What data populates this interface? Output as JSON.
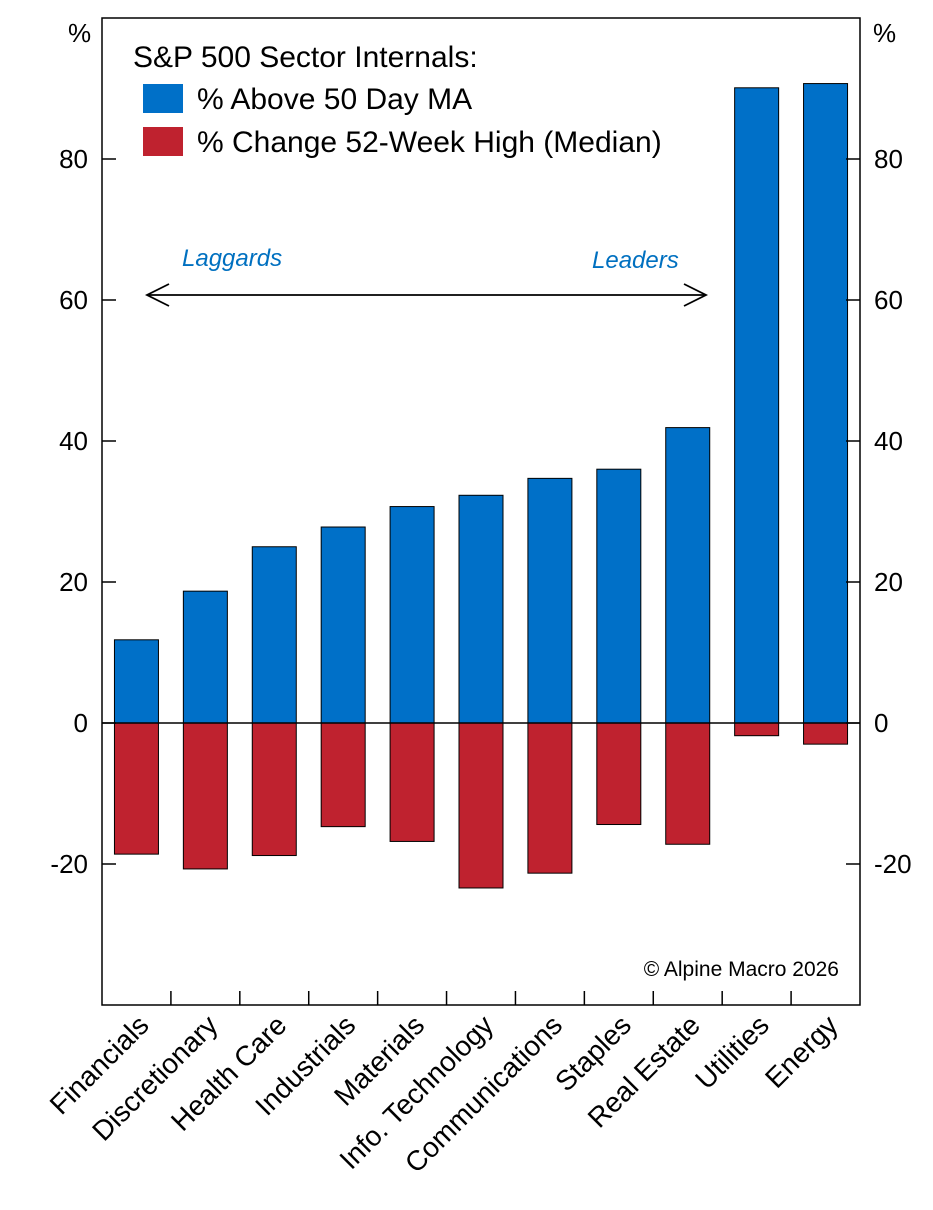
{
  "chart_data": {
    "type": "bar",
    "title": "S&P 500 Sector Internals:",
    "ylabel_left": "%",
    "ylabel_right": "%",
    "ylim": [
      -40,
      100
    ],
    "yticks": [
      -20,
      0,
      20,
      40,
      60,
      80
    ],
    "ytick_labels": [
      "-20",
      "0",
      "20",
      "40",
      "60",
      "80"
    ],
    "categories": [
      "Financials",
      "Discretionary",
      "Health Care",
      "Industrials",
      "Materials",
      "Info. Technology",
      "Communications",
      "Staples",
      "Real Estate",
      "Utilities",
      "Energy"
    ],
    "series": [
      {
        "name": "% Above 50 Day MA",
        "color": "#0070C8",
        "values": [
          11.8,
          18.7,
          25.0,
          27.8,
          30.7,
          32.3,
          34.7,
          36.0,
          41.9,
          90.1,
          90.7
        ]
      },
      {
        "name": "% Change 52-Week High (Median)",
        "color": "#BF222F",
        "values": [
          -18.6,
          -20.7,
          -18.8,
          -14.7,
          -16.8,
          -23.4,
          -21.3,
          -14.4,
          -17.2,
          -1.8,
          -3.0
        ]
      }
    ],
    "annotations": {
      "left": "Laggards",
      "right": "Leaders",
      "color": "#0070C0"
    },
    "credit": "© Alpine Macro 2026"
  }
}
